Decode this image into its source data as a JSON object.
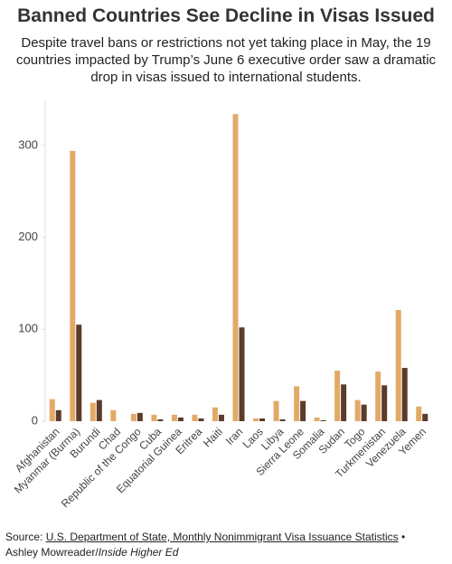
{
  "chart_data": {
    "type": "bar",
    "title": "Banned Countries See Decline in Visas Issued",
    "subtitle": "Despite travel bans or restrictions not yet taking place in May, the 19 countries impacted by Trump’s June 6 executive order saw a dramatic drop in visas issued to international students.",
    "categories": [
      "Afghanistan",
      "Myanmar (Burma)",
      "Burundi",
      "Chad",
      "Republic of the Congo",
      "Cuba",
      "Equatorial Guinea",
      "Eritrea",
      "Haiti",
      "Iran",
      "Laos",
      "Libya",
      "Sierra Leone",
      "Somalia",
      "Sudan",
      "Togo",
      "Turkmenistan",
      "Venezuela",
      "Yemen"
    ],
    "series": [
      {
        "color": "#e3aa67",
        "values": [
          24,
          294,
          20,
          12,
          8,
          7,
          7,
          7,
          15,
          334,
          3,
          22,
          38,
          4,
          55,
          23,
          54,
          121,
          16
        ]
      },
      {
        "color": "#5b3b2b",
        "values": [
          12,
          105,
          23,
          0,
          9,
          2,
          4,
          3,
          7,
          102,
          3,
          2,
          22,
          1,
          40,
          18,
          39,
          58,
          8
        ]
      }
    ],
    "ylim": [
      0,
      350
    ],
    "yticks": [
      0,
      100,
      200,
      300
    ],
    "grid": false,
    "source": {
      "prefix": "Source:",
      "link": "U.S. Department of State, Monthly Nonimmigrant Visa Issuance Statistics",
      "separator": "•",
      "author": "Ashley Mowreader/",
      "outlet": "Inside Higher Ed"
    }
  }
}
